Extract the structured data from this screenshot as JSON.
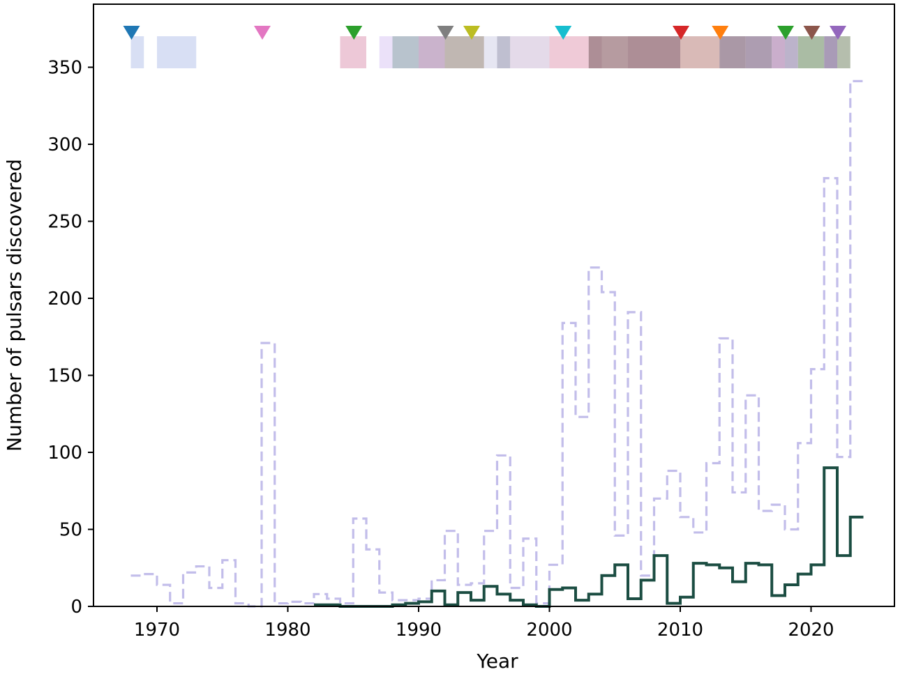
{
  "chart_data": {
    "type": "line",
    "xlabel": "Year",
    "ylabel": "Number of pulsars discovered",
    "xlim": [
      1965,
      2027
    ],
    "ylim": [
      0,
      377
    ],
    "xticks": [
      1970,
      1980,
      1990,
      2000,
      2010,
      2020
    ],
    "yticks": [
      0,
      50,
      100,
      150,
      200,
      250,
      300,
      350
    ],
    "grid": false,
    "legend": "none",
    "series": [
      {
        "style": "dashed",
        "color": "#c2bdea",
        "x": [
          1968,
          1969,
          1970,
          1971,
          1972,
          1973,
          1974,
          1975,
          1976,
          1977,
          1978,
          1979,
          1980,
          1981,
          1982,
          1983,
          1984,
          1985,
          1986,
          1987,
          1988,
          1989,
          1990,
          1991,
          1992,
          1993,
          1994,
          1995,
          1996,
          1997,
          1998,
          1999,
          2000,
          2001,
          2002,
          2003,
          2004,
          2005,
          2006,
          2007,
          2008,
          2009,
          2010,
          2011,
          2012,
          2013,
          2014,
          2015,
          2016,
          2017,
          2018,
          2019,
          2020,
          2021,
          2022,
          2023
        ],
        "y": [
          20,
          21,
          14,
          2,
          22,
          26,
          12,
          30,
          2,
          0,
          171,
          2,
          3,
          2,
          8,
          5,
          2,
          57,
          37,
          9,
          4,
          4,
          5,
          17,
          49,
          14,
          15,
          49,
          98,
          12,
          44,
          2,
          27,
          184,
          123,
          220,
          204,
          46,
          191,
          20,
          70,
          88,
          58,
          48,
          93,
          174,
          74,
          137,
          62,
          66,
          50,
          106,
          154,
          278,
          97,
          341
        ]
      },
      {
        "style": "solid",
        "color": "#1b4d42",
        "x": [
          1982,
          1983,
          1984,
          1985,
          1986,
          1987,
          1988,
          1989,
          1990,
          1991,
          1992,
          1993,
          1994,
          1995,
          1996,
          1997,
          1998,
          1999,
          2000,
          2001,
          2002,
          2003,
          2004,
          2005,
          2006,
          2007,
          2008,
          2009,
          2010,
          2011,
          2012,
          2013,
          2014,
          2015,
          2016,
          2017,
          2018,
          2019,
          2020,
          2021,
          2022,
          2023
        ],
        "y": [
          1,
          1,
          0,
          0,
          0,
          0,
          1,
          2,
          3,
          10,
          1,
          9,
          4,
          13,
          8,
          4,
          1,
          0,
          11,
          12,
          4,
          8,
          20,
          27,
          5,
          17,
          33,
          2,
          6,
          28,
          27,
          25,
          16,
          28,
          27,
          7,
          14,
          21,
          27,
          90,
          33,
          58
        ]
      }
    ],
    "survey_bands": [
      {
        "start": 1968,
        "end": 1969,
        "color": "#c7d2f0"
      },
      {
        "start": 1970,
        "end": 1973,
        "color": "#c7d2f0"
      },
      {
        "start": 1984,
        "end": 1986,
        "color": "#e6b0c6"
      },
      {
        "start": 1987,
        "end": 1988,
        "color": "#e2d4f6"
      },
      {
        "start": 1988,
        "end": 1990,
        "color": "#9aa9b8"
      },
      {
        "start": 1990,
        "end": 1992,
        "color": "#b493b6"
      },
      {
        "start": 1992,
        "end": 1995,
        "color": "#a59892"
      },
      {
        "start": 1995,
        "end": 1996,
        "color": "#dcdcec"
      },
      {
        "start": 1996,
        "end": 1997,
        "color": "#a4a4bc"
      },
      {
        "start": 1997,
        "end": 2000,
        "color": "#d8cadf"
      },
      {
        "start": 2000,
        "end": 2003,
        "color": "#e8b4c6"
      },
      {
        "start": 2003,
        "end": 2004,
        "color": "#8a5e6a"
      },
      {
        "start": 2004,
        "end": 2006,
        "color": "#977078"
      },
      {
        "start": 2006,
        "end": 2010,
        "color": "#8a5e6a"
      },
      {
        "start": 2010,
        "end": 2013,
        "color": "#c99d98"
      },
      {
        "start": 2013,
        "end": 2015,
        "color": "#866c80"
      },
      {
        "start": 2015,
        "end": 2017,
        "color": "#8a7490"
      },
      {
        "start": 2017,
        "end": 2018,
        "color": "#b38cb6"
      },
      {
        "start": 2018,
        "end": 2019,
        "color": "#9f93b5"
      },
      {
        "start": 2019,
        "end": 2021,
        "color": "#86a07d"
      },
      {
        "start": 2021,
        "end": 2022,
        "color": "#857098"
      },
      {
        "start": 2022,
        "end": 2023,
        "color": "#95a38a"
      }
    ],
    "markers": [
      {
        "year": 1968,
        "color": "#1f77b4"
      },
      {
        "year": 1978,
        "color": "#e377c2"
      },
      {
        "year": 1985,
        "color": "#2ca02c"
      },
      {
        "year": 1992,
        "color": "#7f7f7f"
      },
      {
        "year": 1994,
        "color": "#bcbd22"
      },
      {
        "year": 2001,
        "color": "#17becf"
      },
      {
        "year": 2010,
        "color": "#d62728"
      },
      {
        "year": 2013,
        "color": "#ff7f0e"
      },
      {
        "year": 2018,
        "color": "#2ca02c"
      },
      {
        "year": 2020,
        "color": "#8c564b"
      },
      {
        "year": 2022,
        "color": "#9467bd"
      }
    ]
  }
}
